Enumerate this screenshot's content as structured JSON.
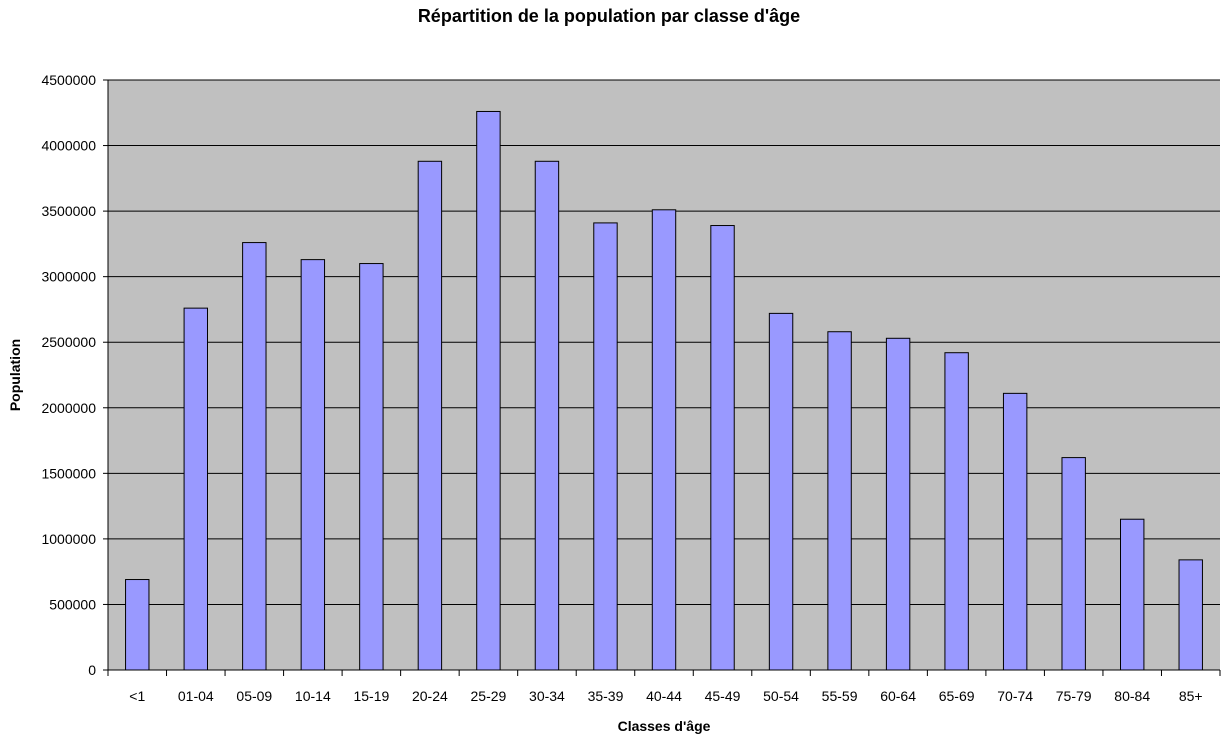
{
  "chart_data": {
    "type": "bar",
    "title": "Répartition de la population par classe d'âge",
    "xlabel": "Classes d'âge",
    "ylabel": "Population",
    "categories": [
      "<1",
      "01-04",
      "05-09",
      "10-14",
      "15-19",
      "20-24",
      "25-29",
      "30-34",
      "35-39",
      "40-44",
      "45-49",
      "50-54",
      "55-59",
      "60-64",
      "65-69",
      "70-74",
      "75-79",
      "80-84",
      "85+"
    ],
    "values": [
      690000,
      2760000,
      3260000,
      3130000,
      3100000,
      3880000,
      4260000,
      3880000,
      3410000,
      3510000,
      3390000,
      2720000,
      2580000,
      2530000,
      2420000,
      2110000,
      1620000,
      1150000,
      840000
    ],
    "ylim": [
      0,
      4500000
    ],
    "yticks": [
      0,
      500000,
      1000000,
      1500000,
      2000000,
      2500000,
      3000000,
      3500000,
      4000000,
      4500000
    ],
    "grid": true,
    "legend": "none",
    "colors": {
      "plot_background": "#c0c0c0",
      "bar_fill": "#9999ff",
      "bar_stroke": "#000000",
      "gridline": "#000000"
    }
  }
}
